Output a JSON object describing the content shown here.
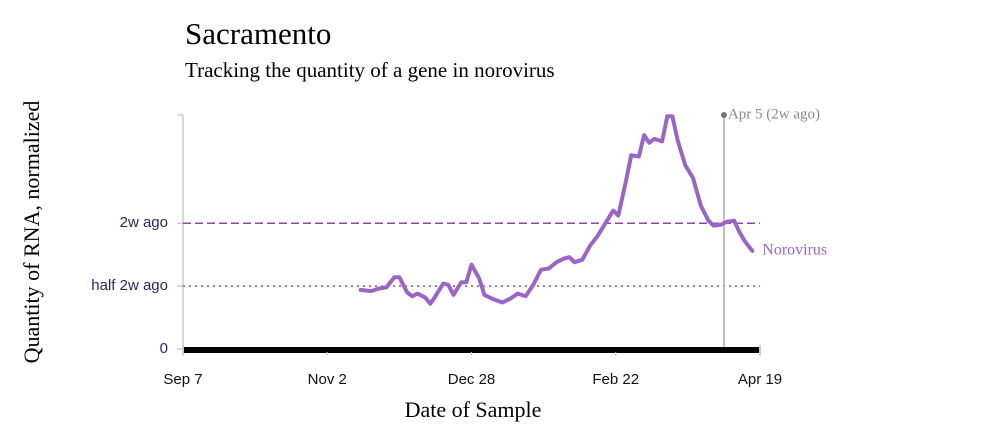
{
  "chart_data": {
    "type": "line",
    "title": "Sacramento",
    "subtitle": "Tracking the quantity of a gene in norovirus",
    "x_label": "Date of Sample",
    "y_label": "Quantity of RNA, normalized",
    "xlim": [
      "Sep 7",
      "Apr 19"
    ],
    "xticks": [
      "Sep 7",
      "Nov 2",
      "Dec 28",
      "Feb 22",
      "Apr 19"
    ],
    "ylim": [
      0,
      1.86
    ],
    "yticks": [
      0,
      {
        "value": 0.5,
        "label": "half 2w ago",
        "line": "dotted"
      },
      {
        "value": 1,
        "label": "2w ago",
        "line": "dashed"
      }
    ],
    "annotations": [
      {
        "x": "Apr 5",
        "text": "Apr 5 (2w ago)"
      }
    ],
    "x": [
      "Nov 15",
      "Nov 19",
      "Nov 22",
      "Nov 25",
      "Nov 28",
      "Nov 30",
      "Dec 3",
      "Dec 5",
      "Dec 7",
      "Dec 10",
      "Dec 12",
      "Dec 14",
      "Dec 17",
      "Dec 19",
      "Dec 21",
      "Dec 24",
      "Dec 26",
      "Dec 28",
      "Dec 31",
      "Jan 2",
      "Jan 5",
      "Jan 9",
      "Jan 12",
      "Jan 15",
      "Jan 18",
      "Jan 21",
      "Jan 24",
      "Jan 27",
      "Jan 30",
      "Feb 2",
      "Feb 4",
      "Feb 6",
      "Feb 9",
      "Feb 12",
      "Feb 15",
      "Feb 18",
      "Feb 21",
      "Feb 23",
      "Feb 26",
      "Feb 28",
      "Mar 3",
      "Mar 5",
      "Mar 7",
      "Mar 9",
      "Mar 12",
      "Mar 14",
      "Mar 16",
      "Mar 18",
      "Mar 21",
      "Mar 24",
      "Mar 27",
      "Mar 30",
      "Apr 1",
      "Apr 4",
      "Apr 6",
      "Apr 9",
      "Apr 11",
      "Apr 13",
      "Apr 16"
    ],
    "series": [
      {
        "name": "Norovirus",
        "color": "#9a66c6",
        "values": [
          0.47,
          0.46,
          0.48,
          0.49,
          0.57,
          0.57,
          0.45,
          0.42,
          0.44,
          0.41,
          0.36,
          0.42,
          0.52,
          0.51,
          0.43,
          0.53,
          0.53,
          0.67,
          0.56,
          0.43,
          0.4,
          0.37,
          0.4,
          0.44,
          0.42,
          0.51,
          0.63,
          0.64,
          0.69,
          0.72,
          0.73,
          0.69,
          0.71,
          0.82,
          0.9,
          1.0,
          1.1,
          1.06,
          1.34,
          1.54,
          1.53,
          1.7,
          1.64,
          1.67,
          1.65,
          1.85,
          1.85,
          1.66,
          1.46,
          1.36,
          1.14,
          1.02,
          0.98,
          0.99,
          1.01,
          1.02,
          0.93,
          0.86,
          0.78
        ]
      }
    ]
  }
}
